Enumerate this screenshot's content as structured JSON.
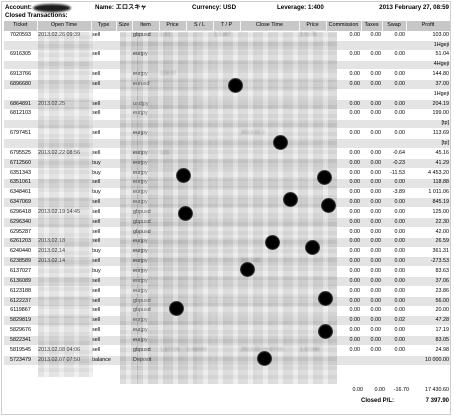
{
  "header": {
    "account_label": "Account:",
    "name_label": "Name:",
    "name_value": "エロスキャ",
    "currency_label": "Currency:",
    "currency_value": "USD",
    "leverage_label": "Leverage:",
    "leverage_value": "1:400",
    "date": "2013 February 27, 08:59"
  },
  "section_title": "Closed Transactions:",
  "columns": [
    "Ticket",
    "Open Time",
    "Type",
    "Size",
    "Item",
    "Price",
    "S / L",
    "T / P",
    "Close Time",
    "Price",
    "Commission",
    "Taxes",
    "Swap",
    "Profit"
  ],
  "rows": [
    {
      "ticket": "7020593",
      "open_time": "2013.02.26 09:39",
      "type": "sell",
      "item": "gbpusd",
      "price": "1.51",
      "sl": "",
      "tp": "1.5167",
      "close_time": "",
      "close_price": "1.5175",
      "commission": "0.00",
      "taxes": "0.00",
      "swap": "0.00",
      "profit": "103.00"
    },
    {
      "ticket": "",
      "open_time": "",
      "type": "",
      "item": "",
      "price": "",
      "sl": "",
      "tp": "",
      "close_time": "",
      "close_price": "",
      "commission": "",
      "taxes": "",
      "swap": "",
      "profit": "1Hgeji"
    },
    {
      "ticket": "6916305",
      "open_time": "",
      "type": "sell",
      "item": "eurjpy",
      "price": "",
      "sl": "",
      "tp": "",
      "close_time": "",
      "close_price": "",
      "commission": "0.00",
      "taxes": "0.00",
      "swap": "0.00",
      "profit": "51.04"
    },
    {
      "ticket": "",
      "open_time": "",
      "type": "",
      "item": "",
      "price": "",
      "sl": "",
      "tp": "",
      "close_time": "",
      "close_price": "",
      "commission": "",
      "taxes": "",
      "swap": "",
      "profit": "4Hgeji"
    },
    {
      "ticket": "6913766",
      "open_time": "",
      "type": "sell",
      "item": "eurjpy",
      "price": "124.07",
      "sl": "",
      "tp": "",
      "close_time": "",
      "close_price": "",
      "commission": "0.00",
      "taxes": "0.00",
      "swap": "0.00",
      "profit": "144.80"
    },
    {
      "ticket": "6896680",
      "open_time": "",
      "type": "sell",
      "item": "eurusd",
      "price": "",
      "sl": "",
      "tp": "",
      "close_time": "",
      "close_price": "",
      "commission": "0.00",
      "taxes": "0.00",
      "swap": "0.00",
      "profit": "37.00"
    },
    {
      "ticket": "",
      "open_time": "",
      "type": "",
      "item": "",
      "price": "",
      "sl": "",
      "tp": "",
      "close_time": "",
      "close_price": "",
      "commission": "",
      "taxes": "",
      "swap": "",
      "profit": "1Hgeji"
    },
    {
      "ticket": "6864891",
      "open_time": "2013.02.25",
      "type": "sell",
      "item": "usdjpy",
      "price": "",
      "sl": "",
      "tp": "",
      "close_time": "",
      "close_price": "",
      "commission": "0.00",
      "taxes": "0.00",
      "swap": "0.00",
      "profit": "204.19"
    },
    {
      "ticket": "6812103",
      "open_time": "",
      "type": "sell",
      "item": "eurjpy",
      "price": "",
      "sl": "",
      "tp": "",
      "close_time": "",
      "close_price": "",
      "commission": "0.00",
      "taxes": "0.00",
      "swap": "0.00",
      "profit": "199.00"
    },
    {
      "ticket": "",
      "open_time": "",
      "type": "",
      "item": "",
      "price": "",
      "sl": "",
      "tp": "",
      "close_time": "",
      "close_price": "",
      "commission": "",
      "taxes": "",
      "swap": "",
      "profit": "[tp]"
    },
    {
      "ticket": "6797451",
      "open_time": "",
      "type": "sell",
      "item": "eurjpy",
      "price": "",
      "sl": "",
      "tp": "",
      "close_time": "2013.02.2",
      "close_price": "",
      "commission": "0.00",
      "taxes": "0.00",
      "swap": "0.00",
      "profit": "113.69"
    },
    {
      "ticket": "",
      "open_time": "",
      "type": "",
      "item": "",
      "price": "",
      "sl": "",
      "tp": "",
      "close_time": "",
      "close_price": "",
      "commission": "",
      "taxes": "",
      "swap": "",
      "profit": "[tp]"
    },
    {
      "ticket": "6795525",
      "open_time": "2013.02.22 08:56",
      "type": "sell",
      "item": "eurjpy",
      "price": "123.",
      "sl": "",
      "tp": "",
      "close_time": "",
      "close_price": "",
      "commission": "0.00",
      "taxes": "0.00",
      "swap": "-0.64",
      "profit": "45.16"
    },
    {
      "ticket": "6712560",
      "open_time": "",
      "type": "buy",
      "item": "eurjpy",
      "price": "",
      "sl": "",
      "tp": "",
      "close_time": "",
      "close_price": "",
      "commission": "0.00",
      "taxes": "0.00",
      "swap": "-0.23",
      "profit": "41.29"
    },
    {
      "ticket": "6351343",
      "open_time": "",
      "type": "buy",
      "item": "eurjpy",
      "price": "",
      "sl": "",
      "tp": "",
      "close_time": "",
      "close_price": "",
      "commission": "0.00",
      "taxes": "0.00",
      "swap": "-11.53",
      "profit": "4 453.20"
    },
    {
      "ticket": "6351061",
      "open_time": "",
      "type": "sell",
      "item": "eurjpy",
      "price": "",
      "sl": "",
      "tp": "",
      "close_time": "",
      "close_price": "",
      "commission": "0.00",
      "taxes": "0.00",
      "swap": "0.00",
      "profit": "118.88"
    },
    {
      "ticket": "6348461",
      "open_time": "",
      "type": "buy",
      "item": "eurjpy",
      "price": "",
      "sl": "",
      "tp": "",
      "close_time": "",
      "close_price": "",
      "commission": "0.00",
      "taxes": "0.00",
      "swap": "-3.89",
      "profit": "1 011.06"
    },
    {
      "ticket": "6347069",
      "open_time": "",
      "type": "sell",
      "item": "eurjpy",
      "price": "",
      "sl": "",
      "tp": "",
      "close_time": "",
      "close_price": "",
      "commission": "0.00",
      "taxes": "0.00",
      "swap": "0.00",
      "profit": "845.19"
    },
    {
      "ticket": "6296418",
      "open_time": "2013.02.19 14:45",
      "type": "sell",
      "item": "gbpusd",
      "price": "",
      "sl": "",
      "tp": "",
      "close_time": "",
      "close_price": "",
      "commission": "0.00",
      "taxes": "0.00",
      "swap": "0.00",
      "profit": "125.00"
    },
    {
      "ticket": "6296340",
      "open_time": "",
      "type": "sell",
      "item": "gbpusd",
      "price": "",
      "sl": "",
      "tp": "",
      "close_time": "",
      "close_price": "",
      "commission": "0.00",
      "taxes": "0.00",
      "swap": "0.00",
      "profit": "22.30"
    },
    {
      "ticket": "6295287",
      "open_time": "",
      "type": "sell",
      "item": "gbpusd",
      "price": "",
      "sl": "",
      "tp": "",
      "close_time": "",
      "close_price": "",
      "commission": "0.00",
      "taxes": "0.00",
      "swap": "0.00",
      "profit": "42.00"
    },
    {
      "ticket": "6261203",
      "open_time": "2013.02.18",
      "type": "sell",
      "item": "eurjpy",
      "price": "",
      "sl": "",
      "tp": "",
      "close_time": "",
      "close_price": "",
      "commission": "0.00",
      "taxes": "0.00",
      "swap": "0.00",
      "profit": "26.59"
    },
    {
      "ticket": "6240440",
      "open_time": "2013.02.14",
      "type": "buy",
      "item": "eurjpy",
      "price": "",
      "sl": "",
      "tp": "",
      "close_time": "",
      "close_price": "",
      "commission": "0.00",
      "taxes": "0.00",
      "swap": "0.00",
      "profit": "361.31"
    },
    {
      "ticket": "6238589",
      "open_time": "2013.02.14",
      "type": "sell",
      "item": "eurjpy",
      "price": "",
      "sl": "",
      "tp": "",
      "close_time": "2013.02",
      "close_price": "",
      "commission": "0.00",
      "taxes": "0.00",
      "swap": "0.00",
      "profit": "-273.53"
    },
    {
      "ticket": "6137027",
      "open_time": "",
      "type": "buy",
      "item": "eurjpy",
      "price": "",
      "sl": "",
      "tp": "",
      "close_time": "",
      "close_price": "",
      "commission": "0.00",
      "taxes": "0.00",
      "swap": "0.00",
      "profit": "83.63"
    },
    {
      "ticket": "6136089",
      "open_time": "",
      "type": "sell",
      "item": "eurjpy",
      "price": "",
      "sl": "",
      "tp": "",
      "close_time": "",
      "close_price": "",
      "commission": "0.00",
      "taxes": "0.00",
      "swap": "0.00",
      "profit": "37.06"
    },
    {
      "ticket": "6123188",
      "open_time": "",
      "type": "sell",
      "item": "eurjpy",
      "price": "",
      "sl": "",
      "tp": "",
      "close_time": "",
      "close_price": "",
      "commission": "0.00",
      "taxes": "0.00",
      "swap": "0.00",
      "profit": "23.86"
    },
    {
      "ticket": "6122237",
      "open_time": "",
      "type": "sell",
      "item": "gbpusd",
      "price": "",
      "sl": "",
      "tp": "",
      "close_time": "",
      "close_price": "",
      "commission": "0.00",
      "taxes": "0.00",
      "swap": "0.00",
      "profit": "56.00"
    },
    {
      "ticket": "6119867",
      "open_time": "",
      "type": "sell",
      "item": "gbpusd",
      "price": "",
      "sl": "",
      "tp": "",
      "close_time": "",
      "close_price": "",
      "commission": "0.00",
      "taxes": "0.00",
      "swap": "0.00",
      "profit": "20.00"
    },
    {
      "ticket": "5829819",
      "open_time": "",
      "type": "sell",
      "item": "eurjpy",
      "price": "",
      "sl": "",
      "tp": "",
      "close_time": "",
      "close_price": "",
      "commission": "0.00",
      "taxes": "0.00",
      "swap": "0.02",
      "profit": "47.28"
    },
    {
      "ticket": "5829676",
      "open_time": "",
      "type": "sell",
      "item": "eurjpy",
      "price": "",
      "sl": "",
      "tp": "",
      "close_time": "",
      "close_price": "",
      "commission": "0.00",
      "taxes": "0.00",
      "swap": "0.00",
      "profit": "17.19"
    },
    {
      "ticket": "5822341",
      "open_time": "",
      "type": "sell",
      "item": "eurjpy",
      "price": "",
      "sl": "",
      "tp": "",
      "close_time": "",
      "close_price": "",
      "commission": "0.00",
      "taxes": "0.00",
      "swap": "0.00",
      "profit": "83.05"
    },
    {
      "ticket": "5819545",
      "open_time": "2013.02.08 04:06",
      "type": "sell",
      "item": "gbpusd",
      "price": "1.57726",
      "sl": "0.00000",
      "tp": "",
      "close_time": "2013.02.08 07:59",
      "close_price": "1.57290",
      "commission": "0.00",
      "taxes": "0.00",
      "swap": "0.00",
      "profit": "24.98"
    },
    {
      "ticket": "5723479",
      "open_time": "2013.02.07 07:50",
      "type": "balance",
      "item": "Deposit",
      "price": "",
      "sl": "",
      "tp": "",
      "close_time": "",
      "close_price": "",
      "commission": "",
      "taxes": "",
      "swap": "",
      "profit": "10 000.00"
    }
  ],
  "totals": {
    "commission": "0.00",
    "taxes": "0.00",
    "swap": "-16.70",
    "profit": "17 430.60"
  },
  "closed_pl": {
    "label": "Closed P/L:",
    "value": "7 397.90"
  }
}
